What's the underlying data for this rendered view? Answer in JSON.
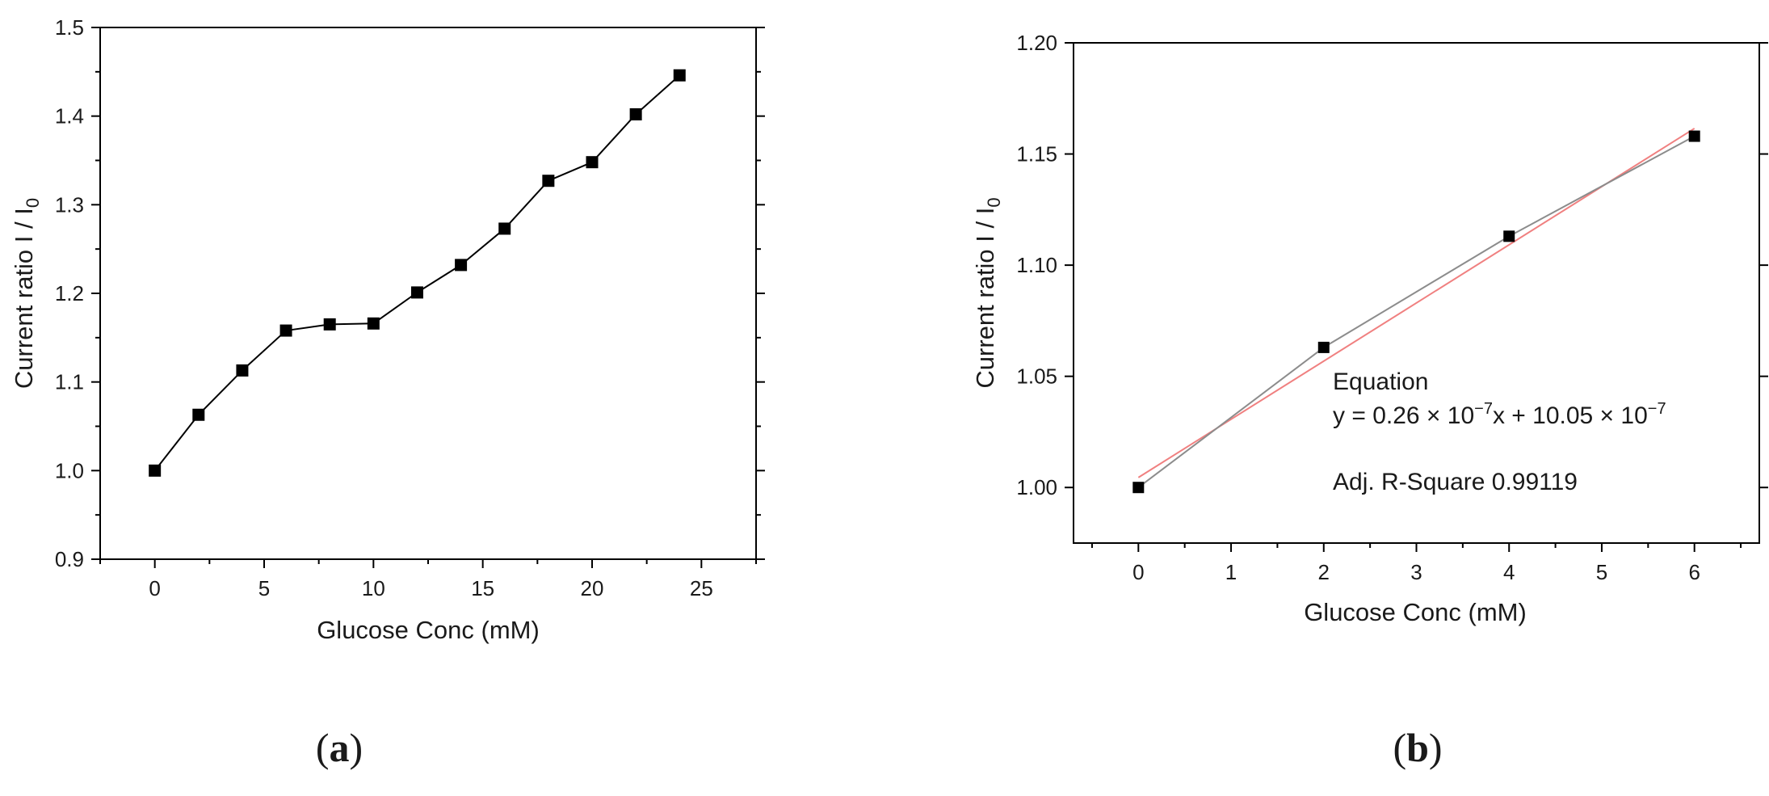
{
  "panels": [
    {
      "letter": "a",
      "open": "(",
      "close": ")"
    },
    {
      "letter": "b",
      "open": "(",
      "close": ")"
    }
  ],
  "chart_data": [
    {
      "type": "line",
      "xlabel": "Glucose Conc (mM)",
      "ylabel_main": "Current ratio I / I",
      "ylabel_sub": "0",
      "xlim": [
        -2.5,
        27.5
      ],
      "ylim": [
        0.9,
        1.5
      ],
      "xticks": [
        0,
        5,
        10,
        15,
        20,
        25
      ],
      "yticks": [
        0.9,
        1.0,
        1.1,
        1.2,
        1.3,
        1.4,
        1.5
      ],
      "ytick_labels": [
        "0.9",
        "1.0",
        "1.1",
        "1.2",
        "1.3",
        "1.4",
        "1.5"
      ],
      "marker": "square",
      "series": [
        {
          "x": [
            0,
            2,
            4,
            6,
            8,
            10,
            12,
            14,
            16,
            18,
            20,
            22,
            24
          ],
          "y": [
            1.0,
            1.063,
            1.113,
            1.158,
            1.165,
            1.166,
            1.201,
            1.232,
            1.273,
            1.327,
            1.348,
            1.402,
            1.446
          ],
          "color": "#000000"
        }
      ],
      "grid": false
    },
    {
      "type": "line",
      "xlabel": "Glucose Conc (mM)",
      "ylabel_main": "Current ratio I / I",
      "ylabel_sub": "0",
      "xlim": [
        -0.7,
        6.7
      ],
      "ylim": [
        0.975,
        1.2
      ],
      "xticks": [
        0,
        1,
        2,
        3,
        4,
        5,
        6
      ],
      "yticks": [
        1.0,
        1.05,
        1.1,
        1.15,
        1.2
      ],
      "ytick_labels": [
        "1.00",
        "1.05",
        "1.10",
        "1.15",
        "1.20"
      ],
      "marker": "square",
      "series": [
        {
          "x": [
            0,
            2,
            4,
            6
          ],
          "y": [
            1.0,
            1.063,
            1.113,
            1.158
          ],
          "color": "#8c8c8c"
        }
      ],
      "fit": {
        "x": [
          0,
          6
        ],
        "y": [
          1.0045,
          1.1615
        ],
        "color": "#f08080"
      },
      "annotation": {
        "title": "Equation",
        "eq_a": "y = 0.26 × 10",
        "eq_exp1": "−7",
        "eq_b": "x + 10.05 × 10",
        "eq_exp2": "−7",
        "r2": "Adj. R-Square 0.99119"
      },
      "grid": false
    }
  ]
}
